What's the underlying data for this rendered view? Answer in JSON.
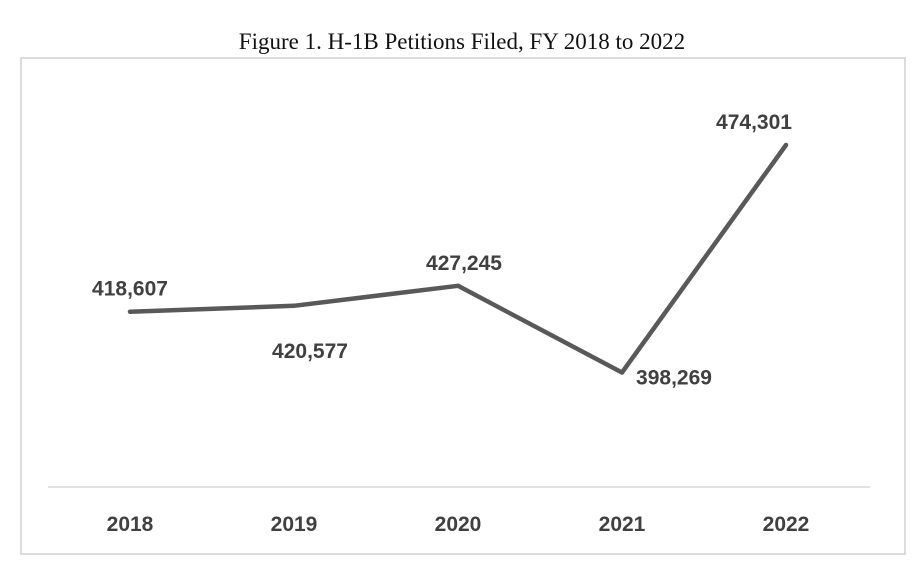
{
  "chart_data": {
    "type": "line",
    "title": "Figure 1. H-1B Petitions Filed, FY 2018 to 2022",
    "categories": [
      "2018",
      "2019",
      "2020",
      "2021",
      "2022"
    ],
    "series": [
      {
        "values": [
          418607,
          420577,
          427245,
          398269,
          474301
        ],
        "labels": [
          "418,607",
          "420,577",
          "427,245",
          "398,269",
          "474,301"
        ],
        "color": "#595959"
      }
    ],
    "xlabel": "",
    "ylabel": "",
    "ylim": [
      360000,
      480000
    ],
    "grid": false,
    "legend": "none"
  }
}
